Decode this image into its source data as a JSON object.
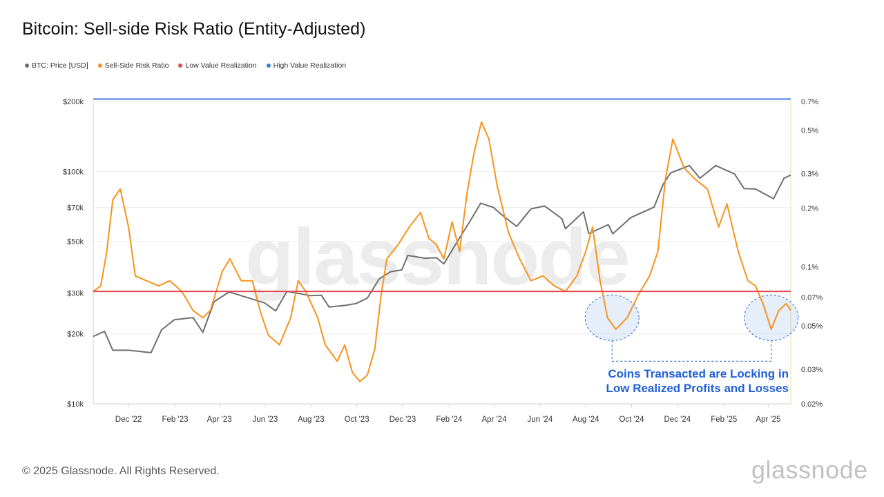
{
  "title": "Bitcoin: Sell-side Risk Ratio (Entity-Adjusted)",
  "legend": [
    {
      "label": "BTC: Price [USD]",
      "color": "#6e6e6e"
    },
    {
      "label": "Sell-Side Risk Ratio",
      "color": "#f7931a"
    },
    {
      "label": "Low Value Realization",
      "color": "#e5484d"
    },
    {
      "label": "High Value Realization",
      "color": "#3a7bd5"
    }
  ],
  "watermark": "glassnode",
  "annotation": {
    "line1": "Coins Transacted are Locking in",
    "line2": "Low Realized Profits and Losses"
  },
  "footer": "© 2025 Glassnode. All Rights Reserved.",
  "brand": "glassnode",
  "chart_data": {
    "type": "line",
    "x_ticks": [
      "Dec '22",
      "Feb '23",
      "Apr '23",
      "Jun '23",
      "Aug '23",
      "Oct '23",
      "Dec '23",
      "Feb '24",
      "Apr '24",
      "Jun '24",
      "Aug '24",
      "Oct '24",
      "Dec '24",
      "Feb '25",
      "Apr '25"
    ],
    "y_left": {
      "scale": "log",
      "range": [
        10000,
        200000
      ],
      "ticks": [
        200000,
        100000,
        70000,
        50000,
        30000,
        20000,
        10000
      ],
      "tick_labels": [
        "$200k",
        "$100k",
        "$70k",
        "$50k",
        "$30k",
        "$20k",
        "$10k"
      ]
    },
    "y_right": {
      "scale": "log",
      "range": [
        0.0002,
        0.007
      ],
      "ticks": [
        0.007,
        0.005,
        0.003,
        0.002,
        0.001,
        0.0007,
        0.0005,
        0.0003,
        0.0002
      ],
      "tick_labels": [
        "0.7%",
        "0.5%",
        "0.3%",
        "0.2%",
        "0.1%",
        "0.07%",
        "0.05%",
        "0.03%",
        "0.02%"
      ]
    },
    "series": [
      {
        "name": "BTC: Price [USD]",
        "axis": "left",
        "color": "#6e6e6e",
        "points": [
          [
            "2022-10-15",
            19500
          ],
          [
            "2022-10-30",
            20500
          ],
          [
            "2022-11-10",
            17000
          ],
          [
            "2022-12-01",
            17000
          ],
          [
            "2022-12-31",
            16600
          ],
          [
            "2023-01-14",
            20800
          ],
          [
            "2023-01-31",
            23000
          ],
          [
            "2023-02-25",
            23500
          ],
          [
            "2023-03-10",
            20300
          ],
          [
            "2023-03-25",
            27500
          ],
          [
            "2023-04-14",
            30300
          ],
          [
            "2023-04-30",
            29200
          ],
          [
            "2023-05-31",
            27200
          ],
          [
            "2023-06-15",
            25100
          ],
          [
            "2023-06-30",
            30500
          ],
          [
            "2023-07-31",
            29200
          ],
          [
            "2023-08-15",
            29300
          ],
          [
            "2023-08-25",
            26100
          ],
          [
            "2023-09-15",
            26500
          ],
          [
            "2023-09-30",
            27000
          ],
          [
            "2023-10-15",
            28500
          ],
          [
            "2023-10-31",
            34500
          ],
          [
            "2023-11-15",
            37000
          ],
          [
            "2023-11-30",
            37700
          ],
          [
            "2023-12-08",
            43500
          ],
          [
            "2023-12-31",
            42300
          ],
          [
            "2024-01-15",
            42500
          ],
          [
            "2024-01-25",
            40000
          ],
          [
            "2024-02-15",
            51800
          ],
          [
            "2024-02-29",
            61200
          ],
          [
            "2024-03-14",
            73000
          ],
          [
            "2024-03-31",
            70000
          ],
          [
            "2024-04-15",
            63500
          ],
          [
            "2024-05-01",
            58000
          ],
          [
            "2024-05-20",
            69000
          ],
          [
            "2024-06-07",
            71000
          ],
          [
            "2024-06-30",
            62700
          ],
          [
            "2024-07-05",
            56700
          ],
          [
            "2024-07-29",
            67000
          ],
          [
            "2024-08-05",
            54000
          ],
          [
            "2024-08-31",
            59000
          ],
          [
            "2024-09-06",
            53900
          ],
          [
            "2024-09-30",
            63300
          ],
          [
            "2024-10-31",
            70200
          ],
          [
            "2024-11-12",
            88000
          ],
          [
            "2024-11-22",
            98500
          ],
          [
            "2024-12-17",
            106000
          ],
          [
            "2024-12-31",
            93500
          ],
          [
            "2025-01-21",
            106000
          ],
          [
            "2025-02-15",
            97500
          ],
          [
            "2025-02-28",
            84300
          ],
          [
            "2025-03-15",
            84000
          ],
          [
            "2025-04-08",
            76300
          ],
          [
            "2025-04-22",
            93500
          ],
          [
            "2025-05-01",
            96500
          ]
        ]
      },
      {
        "name": "Sell-Side Risk Ratio",
        "axis": "right",
        "color": "#f7931a",
        "points": [
          [
            "2022-10-15",
            0.00075
          ],
          [
            "2022-10-25",
            0.0008
          ],
          [
            "2022-11-02",
            0.0012
          ],
          [
            "2022-11-10",
            0.0022
          ],
          [
            "2022-11-20",
            0.0025
          ],
          [
            "2022-12-01",
            0.0016
          ],
          [
            "2022-12-10",
            0.0009
          ],
          [
            "2022-12-25",
            0.00085
          ],
          [
            "2023-01-10",
            0.0008
          ],
          [
            "2023-01-25",
            0.00085
          ],
          [
            "2023-02-10",
            0.00075
          ],
          [
            "2023-02-25",
            0.0006
          ],
          [
            "2023-03-10",
            0.00055
          ],
          [
            "2023-03-20",
            0.0006
          ],
          [
            "2023-04-05",
            0.00095
          ],
          [
            "2023-04-15",
            0.0011
          ],
          [
            "2023-04-30",
            0.00085
          ],
          [
            "2023-05-15",
            0.00085
          ],
          [
            "2023-05-25",
            0.0006
          ],
          [
            "2023-06-05",
            0.00045
          ],
          [
            "2023-06-20",
            0.0004
          ],
          [
            "2023-07-05",
            0.00055
          ],
          [
            "2023-07-15",
            0.00085
          ],
          [
            "2023-07-25",
            0.00075
          ],
          [
            "2023-08-10",
            0.00055
          ],
          [
            "2023-08-20",
            0.0004
          ],
          [
            "2023-09-05",
            0.00033
          ],
          [
            "2023-09-15",
            0.0004
          ],
          [
            "2023-09-25",
            0.00029
          ],
          [
            "2023-10-05",
            0.00026
          ],
          [
            "2023-10-15",
            0.00028
          ],
          [
            "2023-10-25",
            0.00038
          ],
          [
            "2023-11-02",
            0.0007
          ],
          [
            "2023-11-10",
            0.0011
          ],
          [
            "2023-11-25",
            0.0013
          ],
          [
            "2023-12-10",
            0.0016
          ],
          [
            "2023-12-25",
            0.0019
          ],
          [
            "2024-01-05",
            0.0014
          ],
          [
            "2024-01-15",
            0.0013
          ],
          [
            "2024-01-25",
            0.0011
          ],
          [
            "2024-02-05",
            0.0017
          ],
          [
            "2024-02-15",
            0.0012
          ],
          [
            "2024-02-25",
            0.0024
          ],
          [
            "2024-03-05",
            0.0038
          ],
          [
            "2024-03-15",
            0.0055
          ],
          [
            "2024-03-25",
            0.0045
          ],
          [
            "2024-04-05",
            0.0026
          ],
          [
            "2024-04-20",
            0.0015
          ],
          [
            "2024-05-05",
            0.0011
          ],
          [
            "2024-05-20",
            0.00085
          ],
          [
            "2024-06-05",
            0.0009
          ],
          [
            "2024-06-20",
            0.0008
          ],
          [
            "2024-07-05",
            0.00075
          ],
          [
            "2024-07-20",
            0.0009
          ],
          [
            "2024-08-01",
            0.0012
          ],
          [
            "2024-08-10",
            0.0016
          ],
          [
            "2024-08-20",
            0.00085
          ],
          [
            "2024-08-30",
            0.00055
          ],
          [
            "2024-09-10",
            0.00048
          ],
          [
            "2024-09-25",
            0.00055
          ],
          [
            "2024-10-10",
            0.00072
          ],
          [
            "2024-10-25",
            0.0009
          ],
          [
            "2024-11-05",
            0.0012
          ],
          [
            "2024-11-15",
            0.0028
          ],
          [
            "2024-11-25",
            0.0045
          ],
          [
            "2024-12-10",
            0.0032
          ],
          [
            "2024-12-25",
            0.0028
          ],
          [
            "2025-01-10",
            0.0025
          ],
          [
            "2025-01-25",
            0.0016
          ],
          [
            "2025-02-05",
            0.0021
          ],
          [
            "2025-02-20",
            0.0012
          ],
          [
            "2025-03-05",
            0.00085
          ],
          [
            "2025-03-15",
            0.0008
          ],
          [
            "2025-03-25",
            0.00065
          ],
          [
            "2025-04-05",
            0.00048
          ],
          [
            "2025-04-15",
            0.0006
          ],
          [
            "2025-04-25",
            0.00065
          ],
          [
            "2025-05-01",
            0.0006
          ]
        ]
      },
      {
        "name": "Low Value Realization",
        "axis": "right",
        "color": "#e5484d",
        "value": 0.00075
      },
      {
        "name": "High Value Realization",
        "axis": "right",
        "color": "#3a7bd5",
        "value": 0.0072
      }
    ],
    "x_range": [
      "2022-10-15",
      "2025-05-01"
    ],
    "highlights": [
      {
        "center": "2024-09-05",
        "value": 0.00055
      },
      {
        "center": "2025-04-05",
        "value": 0.00055
      }
    ],
    "grid": true,
    "legend_position": "top-left"
  }
}
